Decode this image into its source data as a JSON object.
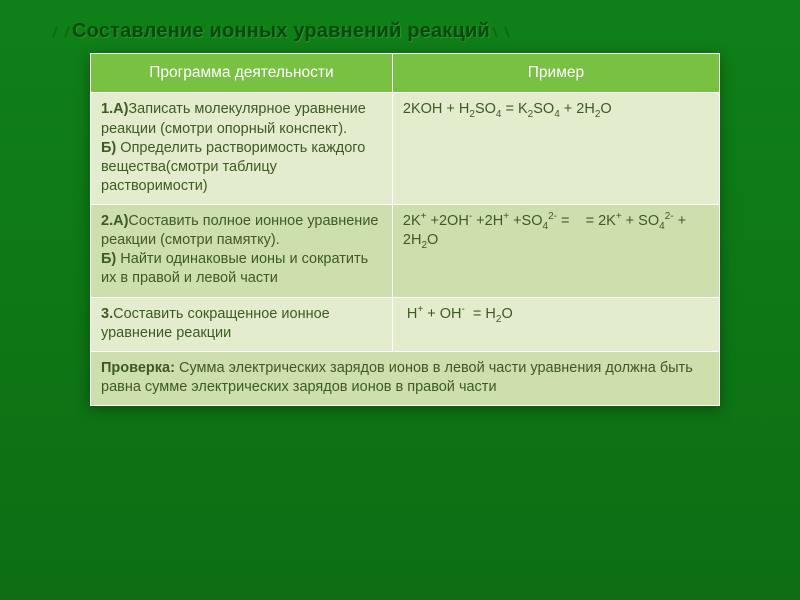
{
  "slide": {
    "title": "Составление ионных уравнений реакций",
    "background_gradient": [
      "#0f8018",
      "#0d6e13"
    ],
    "title_color": "#064a09"
  },
  "table": {
    "header_bg": "#79c143",
    "header_color": "#ffffff",
    "row_light_bg": "#e3edce",
    "row_dark_bg": "#cddfac",
    "row_color": "#3e5a22",
    "border_color": "#ffffff",
    "col_widths_pct": [
      48,
      52
    ],
    "columns": [
      "Программа деятельности",
      "Пример"
    ],
    "rows": [
      {
        "shade": "light",
        "program_html": "<b>1.А)</b>Записать молекулярное уравнение реакции (смотри опорный конспект).<br><b>Б)</b> Определить растворимость каждого вещества(смотри таблицу растворимости)",
        "example_html": "2KOH + H<span class=\"sub\">2</span>SO<span class=\"sub\">4</span> = K<span class=\"sub\">2</span>SO<span class=\"sub\">4</span> + 2H<span class=\"sub\">2</span>O"
      },
      {
        "shade": "dark",
        "program_html": "<b>2.А)</b>Составить полное ионное уравнение реакции (смотри памятку).<br><b>Б)</b> Найти одинаковые ионы и сократить их в правой и левой части",
        "example_html": "2K<span class=\"sup\">+</span> +2OH<span class=\"sup\">-</span> +2H<span class=\"sup\">+</span> +SO<span class=\"sub\">4</span><span class=\"sup\">2-</span> =&nbsp;&nbsp;&nbsp;&nbsp;= 2K<span class=\"sup\">+</span> + SO<span class=\"sub\">4</span><span class=\"sup\">2-</span> + 2H<span class=\"sub\">2</span>O"
      },
      {
        "shade": "light",
        "program_html": "<b>3.</b>Составить сокращенное ионное уравнение реакции",
        "example_html": "&nbsp;H<span class=\"sup\">+</span> + OH<span class=\"sup\">-</span>&nbsp; = H<span class=\"sub\">2</span>O"
      }
    ],
    "footer": {
      "shade": "dark",
      "html": "<b>Проверка:</b> Сумма электрических зарядов ионов в левой части уравнения должна быть равна сумме электрических зарядов ионов в правой части"
    }
  }
}
